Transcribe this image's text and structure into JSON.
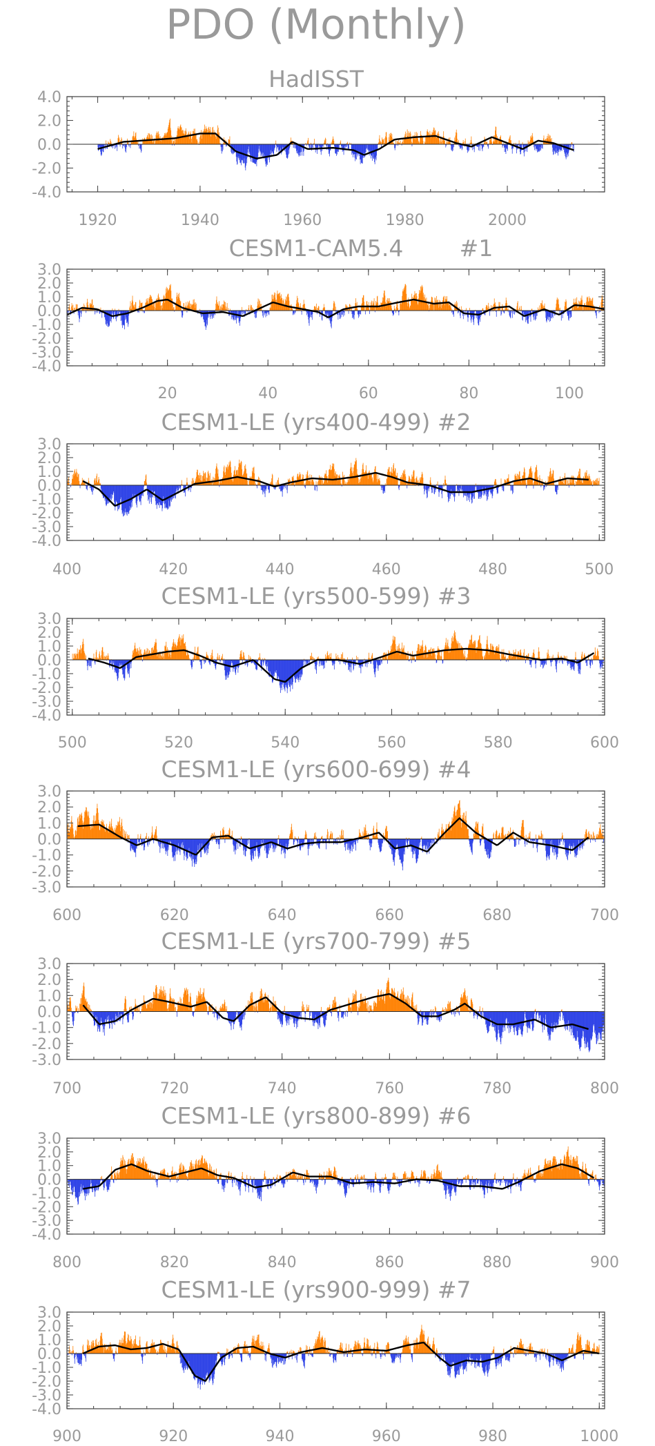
{
  "figure_title": "PDO (Monthly)",
  "colors": {
    "positive": "#ff8000",
    "negative": "#2a3fe6",
    "smooth": "#000000",
    "text": "#9a9a9a",
    "axis": "#4d4d4d"
  },
  "chart_data": [
    {
      "type": "bar",
      "title": "HadISST",
      "x_start": 1920,
      "x_end": 2013,
      "xlim": [
        1914,
        2019
      ],
      "ylim": [
        -4.0,
        4.0
      ],
      "yticks": [
        "4.0",
        "2.0",
        "0.0",
        "-2.0",
        "-4.0"
      ],
      "xticks": [
        "1920",
        "1940",
        "1960",
        "1980",
        "2000"
      ],
      "smooth_keypoints": [
        [
          1920,
          -0.4
        ],
        [
          1925,
          0.2
        ],
        [
          1930,
          0.35
        ],
        [
          1935,
          0.5
        ],
        [
          1940,
          0.9
        ],
        [
          1943,
          0.9
        ],
        [
          1947,
          -0.6
        ],
        [
          1951,
          -1.2
        ],
        [
          1955,
          -0.9
        ],
        [
          1958,
          0.2
        ],
        [
          1961,
          -0.4
        ],
        [
          1966,
          -0.3
        ],
        [
          1970,
          -0.5
        ],
        [
          1972,
          -0.9
        ],
        [
          1975,
          -0.4
        ],
        [
          1978,
          0.4
        ],
        [
          1982,
          0.6
        ],
        [
          1986,
          0.7
        ],
        [
          1990,
          0.1
        ],
        [
          1993,
          -0.2
        ],
        [
          1997,
          0.6
        ],
        [
          2000,
          0.1
        ],
        [
          2003,
          -0.4
        ],
        [
          2006,
          0.3
        ],
        [
          2009,
          0.1
        ],
        [
          2013,
          -0.5
        ]
      ]
    },
    {
      "type": "bar",
      "title": "CESM1-CAM5.4",
      "member_label": "#1",
      "x_start": 0,
      "x_end": 107,
      "xlim": [
        0,
        107
      ],
      "ylim": [
        -4.0,
        3.0
      ],
      "yticks": [
        "3.0",
        "2.0",
        "1.0",
        "0.0",
        "-1.0",
        "-2.0",
        "-3.0",
        "-4.0"
      ],
      "xticks": [
        "20",
        "40",
        "60",
        "80",
        "100"
      ],
      "smooth_keypoints": [
        [
          0,
          -0.3
        ],
        [
          3,
          0.2
        ],
        [
          6,
          0.1
        ],
        [
          9,
          -0.4
        ],
        [
          12,
          -0.2
        ],
        [
          15,
          0.2
        ],
        [
          18,
          0.7
        ],
        [
          20,
          0.8
        ],
        [
          23,
          0.2
        ],
        [
          27,
          -0.2
        ],
        [
          31,
          -0.1
        ],
        [
          35,
          -0.4
        ],
        [
          38,
          0.1
        ],
        [
          41,
          0.6
        ],
        [
          44,
          0.3
        ],
        [
          47,
          0.1
        ],
        [
          50,
          -0.1
        ],
        [
          52,
          -0.5
        ],
        [
          55,
          0.1
        ],
        [
          58,
          0.3
        ],
        [
          62,
          0.3
        ],
        [
          66,
          0.6
        ],
        [
          69,
          0.8
        ],
        [
          73,
          0.5
        ],
        [
          76,
          0.6
        ],
        [
          79,
          -0.2
        ],
        [
          82,
          -0.3
        ],
        [
          85,
          0.2
        ],
        [
          88,
          0.3
        ],
        [
          91,
          -0.4
        ],
        [
          95,
          0.1
        ],
        [
          98,
          -0.3
        ],
        [
          101,
          0.4
        ],
        [
          104,
          0.3
        ],
        [
          107,
          0.1
        ]
      ]
    },
    {
      "type": "bar",
      "title": "CESM1-LE (yrs400-499) #2",
      "x_start": 400,
      "x_end": 500,
      "xlim": [
        400,
        501
      ],
      "ylim": [
        -4.0,
        3.0
      ],
      "yticks": [
        "3.0",
        "2.0",
        "1.0",
        "0.0",
        "-1.0",
        "-2.0",
        "-3.0",
        "-4.0"
      ],
      "xticks": [
        "400",
        "420",
        "440",
        "460",
        "480",
        "500"
      ],
      "smooth_keypoints": [
        [
          403,
          0.3
        ],
        [
          406,
          -0.3
        ],
        [
          409,
          -1.5
        ],
        [
          412,
          -1.0
        ],
        [
          415,
          -0.3
        ],
        [
          418,
          -1.1
        ],
        [
          421,
          -0.5
        ],
        [
          424,
          0.1
        ],
        [
          428,
          0.3
        ],
        [
          432,
          0.6
        ],
        [
          436,
          0.3
        ],
        [
          439,
          -0.1
        ],
        [
          442,
          0.2
        ],
        [
          446,
          0.5
        ],
        [
          450,
          0.4
        ],
        [
          454,
          0.6
        ],
        [
          458,
          0.9
        ],
        [
          461,
          0.6
        ],
        [
          464,
          0.2
        ],
        [
          468,
          0.0
        ],
        [
          472,
          -0.5
        ],
        [
          476,
          -0.5
        ],
        [
          480,
          -0.2
        ],
        [
          484,
          0.3
        ],
        [
          487,
          0.5
        ],
        [
          490,
          0.1
        ],
        [
          494,
          0.5
        ],
        [
          498,
          0.4
        ]
      ]
    },
    {
      "type": "bar",
      "title": "CESM1-LE (yrs500-599) #3",
      "x_start": 500,
      "x_end": 600,
      "xlim": [
        499,
        600
      ],
      "ylim": [
        -4.0,
        3.0
      ],
      "yticks": [
        "3.0",
        "2.0",
        "1.0",
        "0.0",
        "-1.0",
        "-2.0",
        "-3.0",
        "-4.0"
      ],
      "xticks": [
        "500",
        "520",
        "540",
        "560",
        "580",
        "600"
      ],
      "smooth_keypoints": [
        [
          503,
          0.1
        ],
        [
          506,
          -0.2
        ],
        [
          509,
          -0.6
        ],
        [
          512,
          0.2
        ],
        [
          515,
          0.4
        ],
        [
          518,
          0.6
        ],
        [
          521,
          0.7
        ],
        [
          524,
          0.3
        ],
        [
          527,
          -0.2
        ],
        [
          530,
          -0.5
        ],
        [
          534,
          0.0
        ],
        [
          538,
          -1.4
        ],
        [
          540,
          -1.6
        ],
        [
          543,
          -0.6
        ],
        [
          546,
          0.0
        ],
        [
          550,
          0.0
        ],
        [
          554,
          -0.3
        ],
        [
          558,
          0.2
        ],
        [
          561,
          0.6
        ],
        [
          564,
          0.3
        ],
        [
          567,
          0.5
        ],
        [
          570,
          0.7
        ],
        [
          574,
          0.8
        ],
        [
          578,
          0.7
        ],
        [
          582,
          0.4
        ],
        [
          585,
          0.2
        ],
        [
          588,
          0.0
        ],
        [
          592,
          0.1
        ],
        [
          595,
          -0.2
        ],
        [
          598,
          0.5
        ]
      ]
    },
    {
      "type": "bar",
      "title": "CESM1-LE (yrs600-699) #4",
      "x_start": 600,
      "x_end": 700,
      "xlim": [
        600,
        700
      ],
      "ylim": [
        -3.0,
        3.0
      ],
      "yticks": [
        "3.0",
        "2.0",
        "1.0",
        "0.0",
        "-1.0",
        "-2.0",
        "-3.0"
      ],
      "xticks": [
        "600",
        "620",
        "640",
        "660",
        "680",
        "700"
      ],
      "smooth_keypoints": [
        [
          602,
          0.8
        ],
        [
          606,
          0.9
        ],
        [
          610,
          0.1
        ],
        [
          613,
          -0.4
        ],
        [
          616,
          0.0
        ],
        [
          620,
          -0.4
        ],
        [
          624,
          -1.0
        ],
        [
          627,
          0.1
        ],
        [
          630,
          0.2
        ],
        [
          634,
          -0.6
        ],
        [
          638,
          -0.2
        ],
        [
          641,
          -0.6
        ],
        [
          644,
          -0.3
        ],
        [
          647,
          -0.2
        ],
        [
          651,
          -0.2
        ],
        [
          655,
          0.1
        ],
        [
          658,
          0.4
        ],
        [
          661,
          -0.6
        ],
        [
          664,
          -0.4
        ],
        [
          667,
          -0.8
        ],
        [
          670,
          0.3
        ],
        [
          673,
          1.3
        ],
        [
          676,
          0.4
        ],
        [
          680,
          -0.4
        ],
        [
          683,
          0.4
        ],
        [
          686,
          -0.2
        ],
        [
          690,
          -0.4
        ],
        [
          694,
          -0.7
        ],
        [
          697,
          0.1
        ]
      ]
    },
    {
      "type": "bar",
      "title": "CESM1-LE (yrs700-799) #5",
      "x_start": 700,
      "x_end": 800,
      "xlim": [
        700,
        800
      ],
      "ylim": [
        -3.0,
        3.0
      ],
      "yticks": [
        "3.0",
        "2.0",
        "1.0",
        "0.0",
        "-1.0",
        "-2.0",
        "-3.0"
      ],
      "xticks": [
        "700",
        "720",
        "740",
        "760",
        "780",
        "800"
      ],
      "smooth_keypoints": [
        [
          703,
          0.4
        ],
        [
          706,
          -0.8
        ],
        [
          709,
          -0.6
        ],
        [
          712,
          0.1
        ],
        [
          716,
          0.8
        ],
        [
          719,
          0.6
        ],
        [
          723,
          0.3
        ],
        [
          726,
          0.6
        ],
        [
          729,
          -0.4
        ],
        [
          731,
          -0.6
        ],
        [
          734,
          0.4
        ],
        [
          737,
          0.9
        ],
        [
          740,
          -0.1
        ],
        [
          743,
          -0.4
        ],
        [
          746,
          -0.5
        ],
        [
          749,
          0.1
        ],
        [
          753,
          0.5
        ],
        [
          757,
          0.9
        ],
        [
          760,
          1.1
        ],
        [
          763,
          0.5
        ],
        [
          766,
          -0.3
        ],
        [
          769,
          -0.3
        ],
        [
          772,
          0.1
        ],
        [
          774,
          0.5
        ],
        [
          777,
          -0.3
        ],
        [
          780,
          -0.8
        ],
        [
          783,
          -0.8
        ],
        [
          787,
          -0.5
        ],
        [
          790,
          -1.0
        ],
        [
          794,
          -0.8
        ],
        [
          797,
          -1.1
        ]
      ]
    },
    {
      "type": "bar",
      "title": "CESM1-LE (yrs800-899) #6",
      "x_start": 800,
      "x_end": 900,
      "xlim": [
        800,
        900
      ],
      "ylim": [
        -4.0,
        3.0
      ],
      "yticks": [
        "3.0",
        "2.0",
        "1.0",
        "0.0",
        "-1.0",
        "-2.0",
        "-3.0",
        "-4.0"
      ],
      "xticks": [
        "800",
        "820",
        "840",
        "860",
        "880",
        "900"
      ],
      "smooth_keypoints": [
        [
          803,
          -0.7
        ],
        [
          806,
          -0.5
        ],
        [
          809,
          0.7
        ],
        [
          812,
          1.1
        ],
        [
          815,
          0.6
        ],
        [
          819,
          0.2
        ],
        [
          822,
          0.5
        ],
        [
          825,
          0.8
        ],
        [
          828,
          0.3
        ],
        [
          831,
          0.1
        ],
        [
          835,
          -0.6
        ],
        [
          838,
          -0.4
        ],
        [
          842,
          0.5
        ],
        [
          845,
          0.2
        ],
        [
          849,
          0.2
        ],
        [
          853,
          -0.3
        ],
        [
          857,
          -0.2
        ],
        [
          861,
          -0.3
        ],
        [
          865,
          0.0
        ],
        [
          869,
          -0.1
        ],
        [
          873,
          -0.5
        ],
        [
          877,
          -0.5
        ],
        [
          881,
          -0.7
        ],
        [
          884,
          -0.2
        ],
        [
          888,
          0.6
        ],
        [
          892,
          1.1
        ],
        [
          895,
          0.8
        ],
        [
          898,
          0.1
        ]
      ]
    },
    {
      "type": "bar",
      "title": "CESM1-LE (yrs900-999) #7",
      "x_start": 900,
      "x_end": 1000,
      "xlim": [
        900,
        1001
      ],
      "ylim": [
        -4.0,
        3.0
      ],
      "yticks": [
        "3.0",
        "2.0",
        "1.0",
        "0.0",
        "-1.0",
        "-2.0",
        "-3.0",
        "-4.0"
      ],
      "xticks": [
        "900",
        "920",
        "940",
        "960",
        "980",
        "1000"
      ],
      "smooth_keypoints": [
        [
          903,
          0.0
        ],
        [
          906,
          0.5
        ],
        [
          909,
          0.6
        ],
        [
          912,
          0.3
        ],
        [
          915,
          0.4
        ],
        [
          918,
          0.7
        ],
        [
          921,
          0.3
        ],
        [
          924,
          -1.6
        ],
        [
          926,
          -2.0
        ],
        [
          929,
          -0.3
        ],
        [
          932,
          0.4
        ],
        [
          935,
          0.5
        ],
        [
          938,
          0.0
        ],
        [
          941,
          -0.3
        ],
        [
          944,
          0.1
        ],
        [
          948,
          0.4
        ],
        [
          952,
          0.1
        ],
        [
          956,
          0.3
        ],
        [
          960,
          0.2
        ],
        [
          964,
          0.6
        ],
        [
          967,
          0.8
        ],
        [
          970,
          -0.3
        ],
        [
          972,
          -0.9
        ],
        [
          975,
          -0.5
        ],
        [
          978,
          -0.6
        ],
        [
          981,
          -0.3
        ],
        [
          984,
          0.4
        ],
        [
          987,
          0.2
        ],
        [
          990,
          0.0
        ],
        [
          993,
          -0.5
        ],
        [
          997,
          0.2
        ],
        [
          1000,
          0.0
        ]
      ]
    }
  ]
}
